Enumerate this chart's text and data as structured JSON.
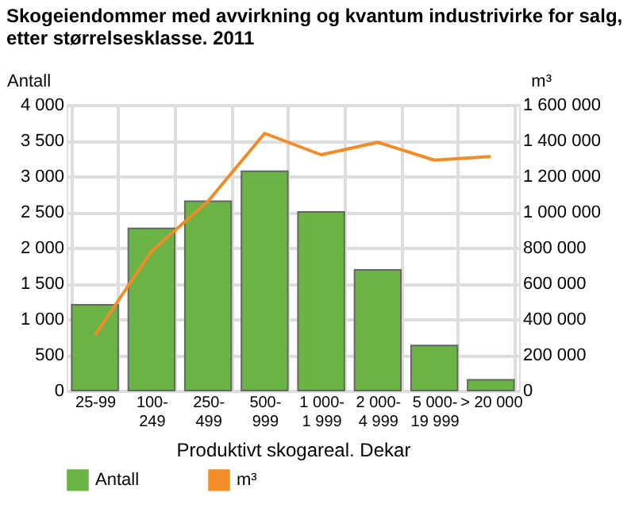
{
  "chart_data": {
    "type": "bar",
    "title": "Skogeiendommer med avvirkning og kvantum industrivirke for salg, etter størrelsesklasse. 2011",
    "xlabel": "Produktivt skogareal. Dekar",
    "ylabel": "Antall",
    "y2label": "m³",
    "categories": [
      "25-99",
      "100-249",
      "250-499",
      "500-999",
      "1 000-1 999",
      "2 000-4 999",
      "5 000-19 999",
      "> 20 000"
    ],
    "series": [
      {
        "name": "Antall",
        "color": "#6ab344",
        "values": [
          1200,
          2270,
          2650,
          3070,
          2500,
          1690,
          630,
          150
        ]
      },
      {
        "name": "m³",
        "type": "line",
        "axis": "y2",
        "color": "#f28c28",
        "values": [
          310000,
          780000,
          1060000,
          1440000,
          1320000,
          1390000,
          1290000,
          1310000
        ]
      }
    ],
    "ylim": [
      0,
      4000
    ],
    "yticks": [
      0,
      500,
      {
        "value": 1000,
        "label": "1 000"
      },
      {
        "value": 1500,
        "label": "1 500"
      },
      {
        "value": 2000,
        "label": "2 000"
      },
      {
        "value": 2500,
        "label": "2 500"
      },
      {
        "value": 3000,
        "label": "3 000"
      },
      {
        "value": 3500,
        "label": "3 500"
      },
      {
        "value": 4000,
        "label": "4 000"
      }
    ],
    "y2lim": [
      0,
      1600000
    ],
    "y2ticks": [
      0,
      {
        "value": 200000,
        "label": "200 000"
      },
      {
        "value": 400000,
        "label": "400 000"
      },
      {
        "value": 600000,
        "label": "600 000"
      },
      {
        "value": 800000,
        "label": "800 000"
      },
      {
        "value": 1000000,
        "label": "1 000 000"
      },
      {
        "value": 1200000,
        "label": "1 200 000"
      },
      {
        "value": 1400000,
        "label": "1 400 000"
      },
      {
        "value": 1600000,
        "label": "1 600 000"
      }
    ],
    "grid": true,
    "legend": "bottom",
    "marker": "none",
    "line_style": "solid"
  }
}
